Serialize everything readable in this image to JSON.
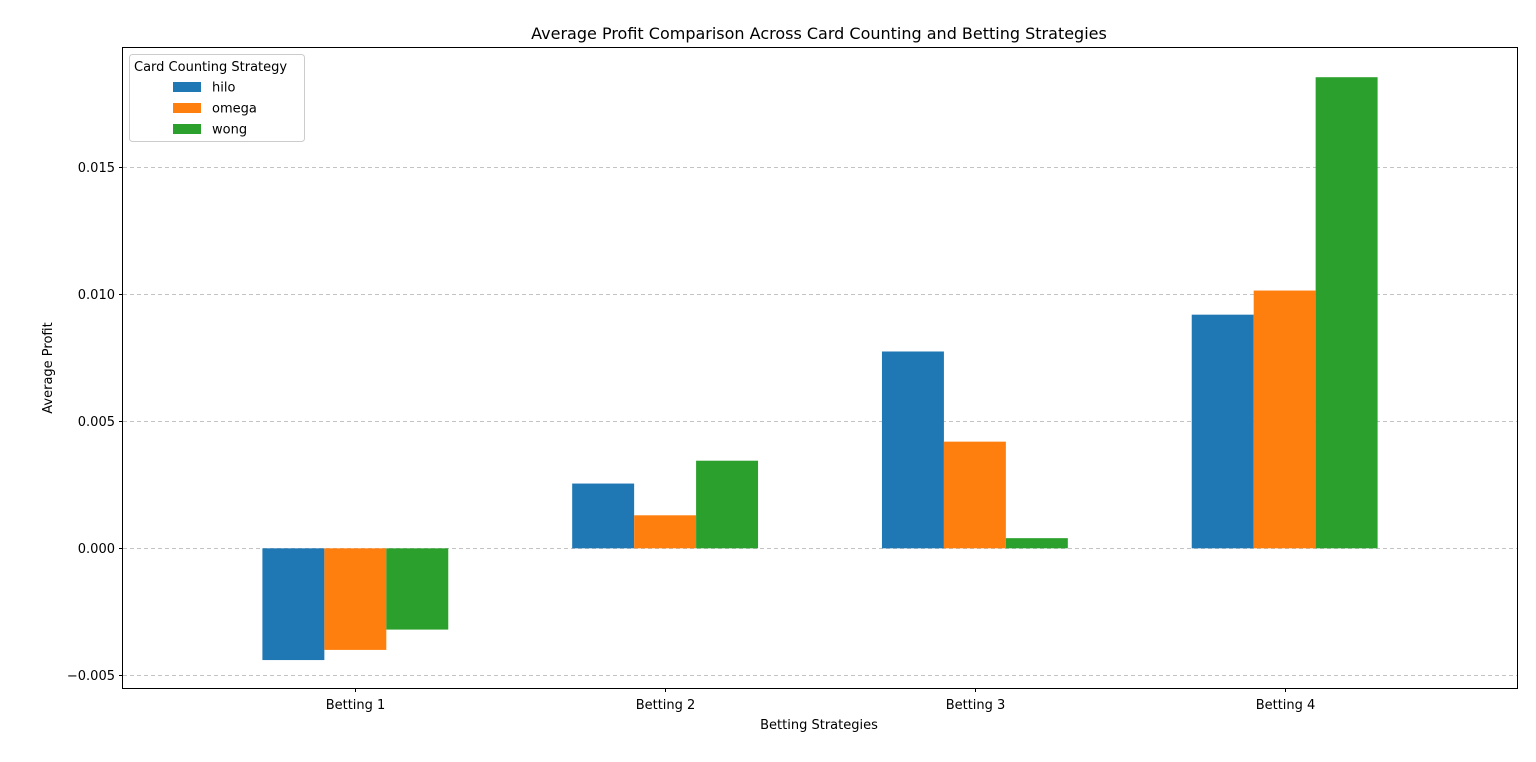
{
  "chart_data": {
    "type": "bar",
    "title": "Average Profit Comparison Across Card Counting and Betting Strategies",
    "xlabel": "Betting Strategies",
    "ylabel": "Average Profit",
    "categories": [
      "Betting 1",
      "Betting 2",
      "Betting 3",
      "Betting 4"
    ],
    "series": [
      {
        "name": "hilo",
        "color": "#1f77b4",
        "values": [
          -0.0044,
          0.00255,
          0.00775,
          0.0092
        ]
      },
      {
        "name": "omega",
        "color": "#ff7f0e",
        "values": [
          -0.004,
          0.0013,
          0.0042,
          0.01015
        ]
      },
      {
        "name": "wong",
        "color": "#2ca02c",
        "values": [
          -0.0032,
          0.00345,
          0.0004,
          0.01855
        ]
      }
    ],
    "ylim": [
      -0.0055,
      0.0197
    ],
    "yticks": [
      -0.005,
      0.0,
      0.005,
      0.01,
      0.015
    ],
    "ytick_labels": [
      "−0.005",
      "0.000",
      "0.005",
      "0.010",
      "0.015"
    ],
    "grid": "y-dashed",
    "legend": {
      "title": "Card Counting Strategy",
      "placement": "upper-left"
    }
  }
}
